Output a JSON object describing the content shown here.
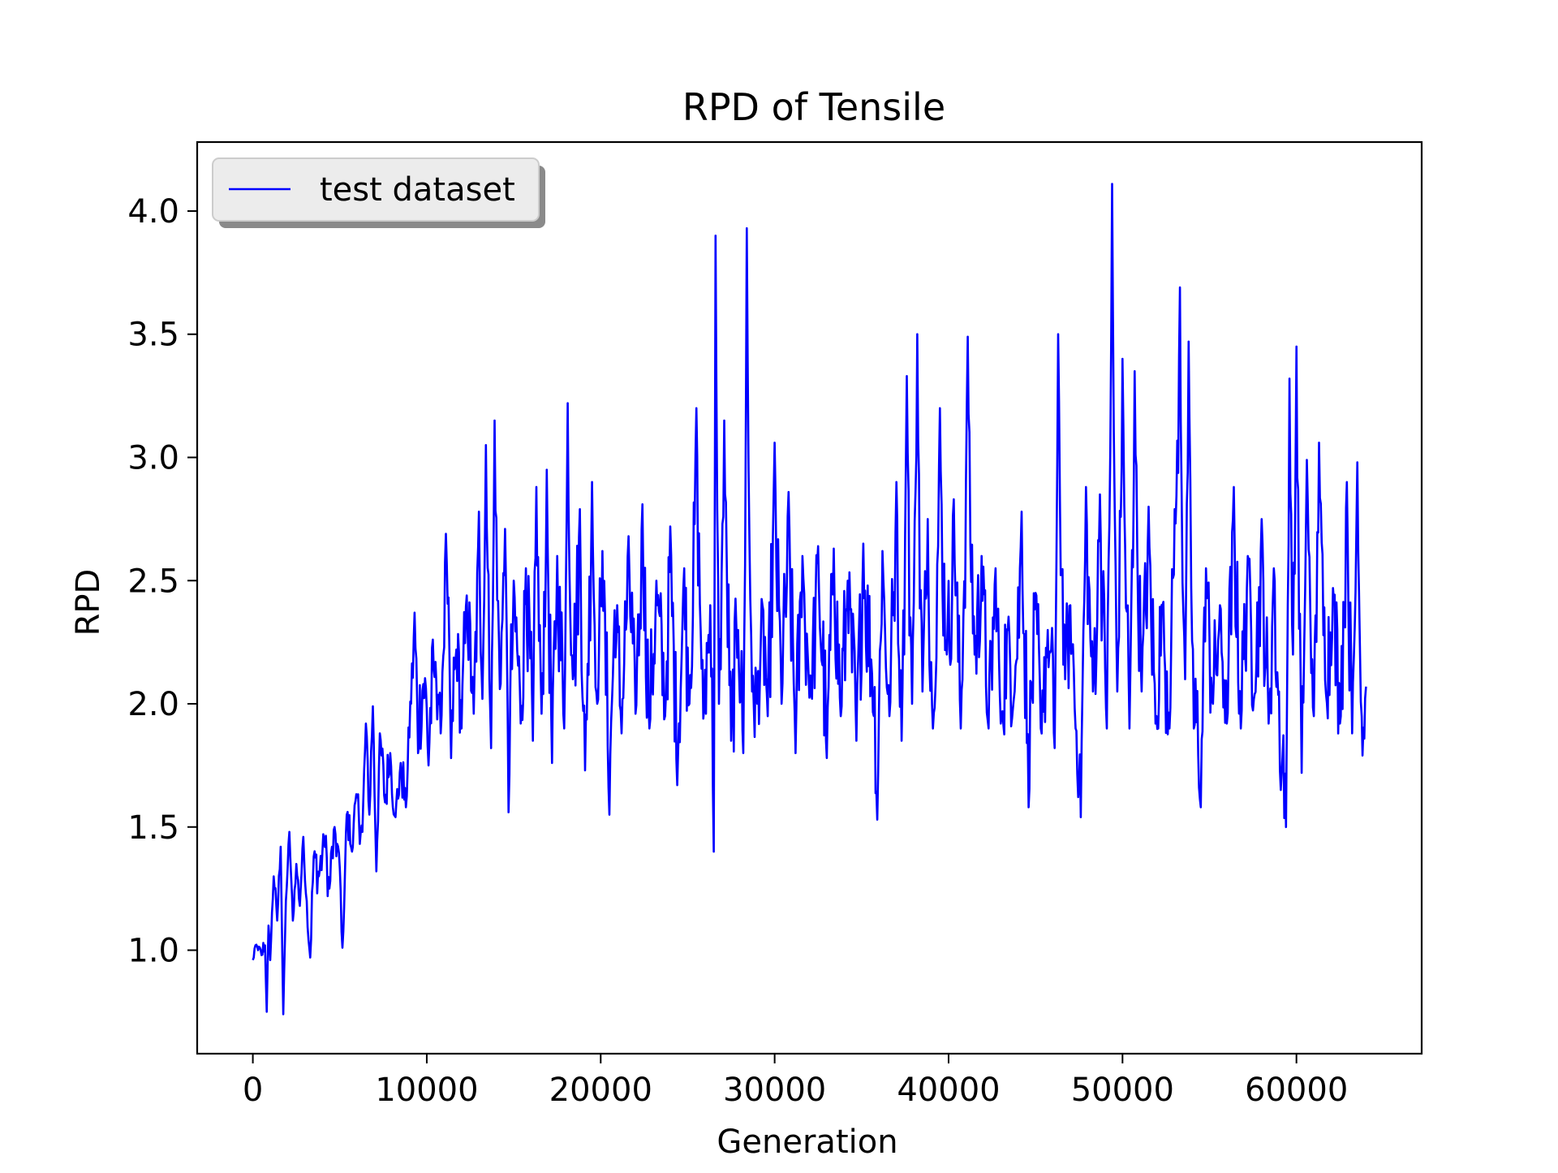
{
  "chart_data": {
    "type": "line",
    "title": "RPD of Tensile",
    "xlabel": "Generation",
    "ylabel": "RPD",
    "xlim": [
      -3200,
      67200
    ],
    "ylim": [
      0.58,
      4.28
    ],
    "xticks": [
      0,
      10000,
      20000,
      30000,
      40000,
      50000,
      60000
    ],
    "xtick_labels": [
      "0",
      "10000",
      "20000",
      "30000",
      "40000",
      "50000",
      "60000"
    ],
    "yticks": [
      1.0,
      1.5,
      2.0,
      2.5,
      3.0,
      3.5,
      4.0
    ],
    "ytick_labels": [
      "1.0",
      "1.5",
      "2.0",
      "2.5",
      "3.0",
      "3.5",
      "4.0"
    ],
    "grid": false,
    "legend": {
      "position": "top-left",
      "entries": [
        "test dataset"
      ]
    },
    "series": [
      {
        "name": "test dataset",
        "color": "#0000ff",
        "x_start": 0,
        "x_step": 50,
        "anchors": [
          [
            0,
            0.96
          ],
          [
            150,
            1.02
          ],
          [
            300,
            1.0
          ],
          [
            500,
            0.98
          ],
          [
            700,
            1.02
          ],
          [
            800,
            0.75
          ],
          [
            900,
            1.1
          ],
          [
            1000,
            0.96
          ],
          [
            1200,
            1.3
          ],
          [
            1400,
            1.12
          ],
          [
            1600,
            1.42
          ],
          [
            1750,
            0.74
          ],
          [
            1900,
            1.2
          ],
          [
            2100,
            1.48
          ],
          [
            2300,
            1.12
          ],
          [
            2500,
            1.35
          ],
          [
            2700,
            1.18
          ],
          [
            2900,
            1.46
          ],
          [
            3100,
            1.2
          ],
          [
            3300,
            0.97
          ],
          [
            3500,
            1.38
          ],
          [
            3800,
            1.3
          ],
          [
            4100,
            1.45
          ],
          [
            4400,
            1.25
          ],
          [
            4700,
            1.5
          ],
          [
            5000,
            1.33
          ],
          [
            5150,
            1.01
          ],
          [
            5400,
            1.55
          ],
          [
            5700,
            1.4
          ],
          [
            6000,
            1.62
          ],
          [
            6300,
            1.48
          ],
          [
            6500,
            1.92
          ],
          [
            6700,
            1.55
          ],
          [
            6900,
            1.99
          ],
          [
            7100,
            1.32
          ],
          [
            7300,
            1.88
          ],
          [
            7600,
            1.6
          ],
          [
            7900,
            1.8
          ],
          [
            8200,
            1.54
          ],
          [
            8500,
            1.76
          ],
          [
            8800,
            1.58
          ],
          [
            9100,
            2.0
          ],
          [
            9300,
            2.37
          ],
          [
            9500,
            1.8
          ],
          [
            9800,
            2.08
          ],
          [
            10100,
            1.75
          ],
          [
            10500,
            2.17
          ],
          [
            10800,
            1.88
          ],
          [
            11100,
            2.69
          ],
          [
            11400,
            1.78
          ],
          [
            11700,
            2.22
          ],
          [
            12000,
            1.9
          ],
          [
            12300,
            2.44
          ],
          [
            12700,
            1.96
          ],
          [
            13000,
            2.78
          ],
          [
            13200,
            2.02
          ],
          [
            13400,
            3.05
          ],
          [
            13700,
            1.82
          ],
          [
            13900,
            3.15
          ],
          [
            14200,
            2.06
          ],
          [
            14500,
            2.71
          ],
          [
            14700,
            1.56
          ],
          [
            15000,
            2.5
          ],
          [
            15400,
            1.92
          ],
          [
            15700,
            2.55
          ],
          [
            16100,
            1.85
          ],
          [
            16300,
            2.88
          ],
          [
            16600,
            1.96
          ],
          [
            16900,
            2.95
          ],
          [
            17200,
            1.76
          ],
          [
            17500,
            2.6
          ],
          [
            17900,
            1.9
          ],
          [
            18100,
            3.22
          ],
          [
            18400,
            2.1
          ],
          [
            18800,
            2.79
          ],
          [
            19100,
            1.73
          ],
          [
            19500,
            2.9
          ],
          [
            19800,
            2.0
          ],
          [
            20100,
            2.62
          ],
          [
            20500,
            1.55
          ],
          [
            20800,
            2.38
          ],
          [
            21200,
            1.88
          ],
          [
            21600,
            2.68
          ],
          [
            22000,
            1.96
          ],
          [
            22400,
            2.81
          ],
          [
            22800,
            1.9
          ],
          [
            23200,
            2.5
          ],
          [
            23700,
            1.95
          ],
          [
            24000,
            2.72
          ],
          [
            24400,
            1.67
          ],
          [
            24800,
            2.55
          ],
          [
            25100,
            2.0
          ],
          [
            25500,
            3.2
          ],
          [
            25900,
            1.94
          ],
          [
            26300,
            2.4
          ],
          [
            26500,
            1.4
          ],
          [
            26600,
            3.9
          ],
          [
            26800,
            2.0
          ],
          [
            27100,
            3.15
          ],
          [
            27500,
            1.85
          ],
          [
            27900,
            2.3
          ],
          [
            28200,
            1.8
          ],
          [
            28400,
            3.93
          ],
          [
            28700,
            2.05
          ],
          [
            29000,
            2.0
          ],
          [
            29300,
            2.4
          ],
          [
            29600,
            1.95
          ],
          [
            30000,
            3.06
          ],
          [
            30400,
            2.0
          ],
          [
            30800,
            2.86
          ],
          [
            31200,
            1.8
          ],
          [
            31600,
            2.6
          ],
          [
            32100,
            2.04
          ],
          [
            32500,
            2.64
          ],
          [
            33000,
            1.78
          ],
          [
            33400,
            2.63
          ],
          [
            33800,
            1.95
          ],
          [
            34200,
            2.5
          ],
          [
            34700,
            1.85
          ],
          [
            35100,
            2.65
          ],
          [
            35600,
            2.12
          ],
          [
            35900,
            1.53
          ],
          [
            36200,
            2.62
          ],
          [
            36600,
            1.95
          ],
          [
            37000,
            2.9
          ],
          [
            37300,
            1.85
          ],
          [
            37600,
            3.33
          ],
          [
            37900,
            2.0
          ],
          [
            38200,
            3.5
          ],
          [
            38500,
            2.05
          ],
          [
            38800,
            2.75
          ],
          [
            39100,
            1.9
          ],
          [
            39500,
            3.2
          ],
          [
            39900,
            2.2
          ],
          [
            40300,
            2.83
          ],
          [
            40700,
            1.9
          ],
          [
            41100,
            3.49
          ],
          [
            41500,
            2.2
          ],
          [
            41900,
            2.6
          ],
          [
            42300,
            1.9
          ],
          [
            42700,
            2.55
          ],
          [
            43000,
            1.92
          ],
          [
            43400,
            2.3
          ],
          [
            43800,
            2.05
          ],
          [
            44200,
            2.78
          ],
          [
            44600,
            1.58
          ],
          [
            45000,
            2.45
          ],
          [
            45300,
            1.9
          ],
          [
            45700,
            2.3
          ],
          [
            46100,
            1.82
          ],
          [
            46300,
            3.5
          ],
          [
            46700,
            2.1
          ],
          [
            47000,
            2.4
          ],
          [
            47300,
            1.9
          ],
          [
            47600,
            1.54
          ],
          [
            47900,
            2.88
          ],
          [
            48300,
            2.05
          ],
          [
            48700,
            2.85
          ],
          [
            49100,
            1.9
          ],
          [
            49400,
            4.11
          ],
          [
            49700,
            2.05
          ],
          [
            50000,
            3.4
          ],
          [
            50400,
            1.9
          ],
          [
            50700,
            3.35
          ],
          [
            51100,
            2.05
          ],
          [
            51500,
            2.8
          ],
          [
            51900,
            1.92
          ],
          [
            52300,
            2.4
          ],
          [
            52700,
            1.9
          ],
          [
            53000,
            2.79
          ],
          [
            53300,
            3.69
          ],
          [
            53600,
            2.1
          ],
          [
            53800,
            3.47
          ],
          [
            54100,
            1.9
          ],
          [
            54500,
            1.58
          ],
          [
            54800,
            2.55
          ],
          [
            55200,
            2.0
          ],
          [
            55600,
            2.4
          ],
          [
            56000,
            1.92
          ],
          [
            56400,
            2.88
          ],
          [
            56800,
            1.9
          ],
          [
            57200,
            2.6
          ],
          [
            57600,
            2.04
          ],
          [
            58000,
            2.75
          ],
          [
            58400,
            1.92
          ],
          [
            58700,
            2.55
          ],
          [
            59100,
            1.65
          ],
          [
            59400,
            1.5
          ],
          [
            59600,
            3.32
          ],
          [
            59800,
            2.2
          ],
          [
            60000,
            3.45
          ],
          [
            60300,
            1.72
          ],
          [
            60600,
            2.99
          ],
          [
            61000,
            1.95
          ],
          [
            61300,
            3.06
          ],
          [
            61700,
            2.04
          ],
          [
            62100,
            2.47
          ],
          [
            62500,
            1.92
          ],
          [
            62900,
            2.9
          ],
          [
            63200,
            1.88
          ],
          [
            63500,
            2.98
          ],
          [
            63800,
            1.79
          ],
          [
            64000,
            2.07
          ]
        ]
      }
    ]
  }
}
